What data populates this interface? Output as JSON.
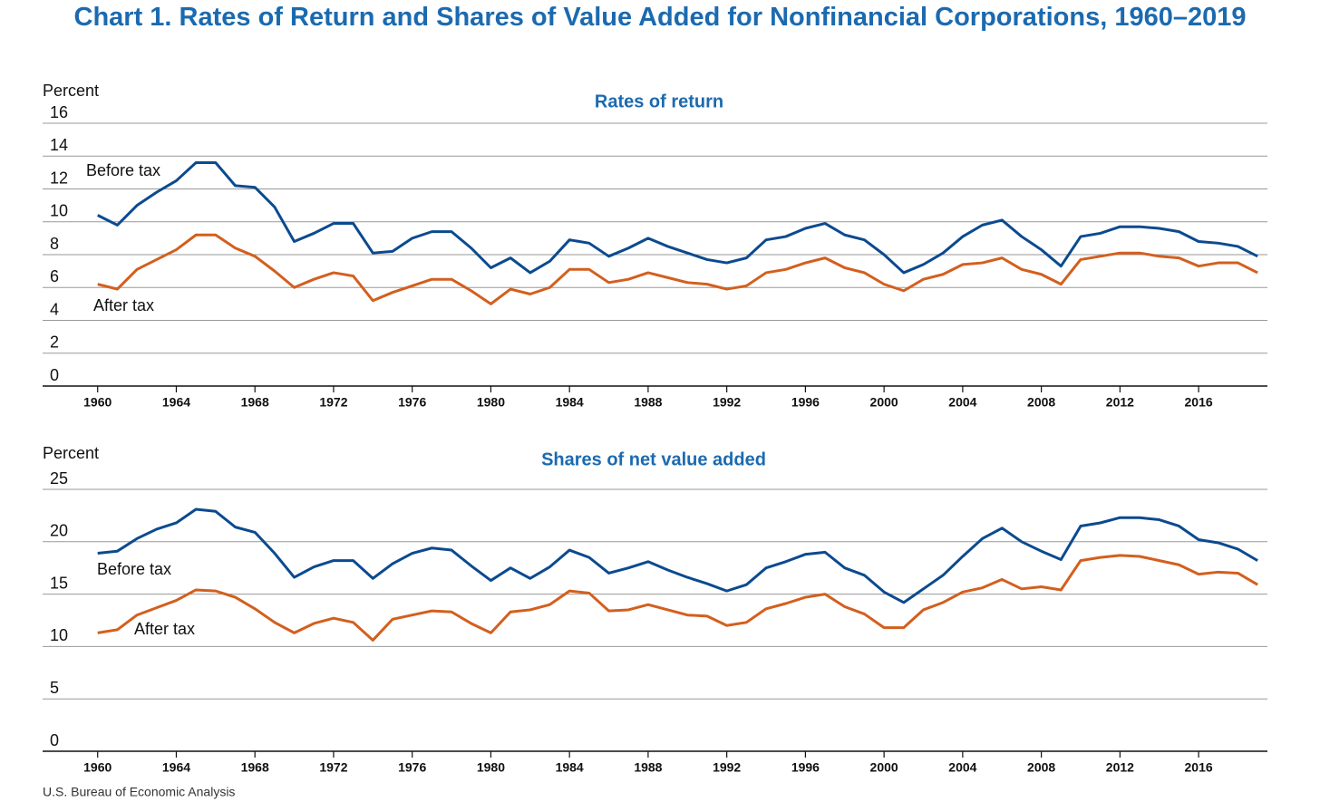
{
  "title": "Chart 1. Rates of Return and Shares of Value Added for Nonfinancial Corporations, 1960–2019",
  "source": "U.S. Bureau of Economic Analysis",
  "chart_data": [
    {
      "type": "line",
      "title": "Rates of return",
      "y_label": "Percent",
      "x": [
        1960,
        1961,
        1962,
        1963,
        1964,
        1965,
        1966,
        1967,
        1968,
        1969,
        1970,
        1971,
        1972,
        1973,
        1974,
        1975,
        1976,
        1977,
        1978,
        1979,
        1980,
        1981,
        1982,
        1983,
        1984,
        1985,
        1986,
        1987,
        1988,
        1989,
        1990,
        1991,
        1992,
        1993,
        1994,
        1995,
        1996,
        1997,
        1998,
        1999,
        2000,
        2001,
        2002,
        2003,
        2004,
        2005,
        2006,
        2007,
        2008,
        2009,
        2010,
        2011,
        2012,
        2013,
        2014,
        2015,
        2016,
        2017,
        2018,
        2019
      ],
      "xlim": [
        1957.2,
        2019.5
      ],
      "xticks": [
        1960,
        1964,
        1968,
        1972,
        1976,
        1980,
        1984,
        1988,
        1992,
        1996,
        2000,
        2004,
        2008,
        2012,
        2016
      ],
      "ylim": [
        0,
        16
      ],
      "yticks": [
        0,
        2,
        4,
        6,
        8,
        10,
        12,
        14,
        16
      ],
      "grid": true,
      "series": [
        {
          "name": "Before tax",
          "color": "#0b4a8f",
          "values": [
            10.4,
            9.8,
            11.0,
            11.8,
            12.5,
            13.6,
            13.6,
            12.2,
            12.1,
            10.9,
            8.8,
            9.3,
            9.9,
            9.9,
            8.1,
            8.2,
            9.0,
            9.4,
            9.4,
            8.4,
            7.2,
            7.8,
            6.9,
            7.6,
            8.9,
            8.7,
            7.9,
            8.4,
            9.0,
            8.5,
            8.1,
            7.7,
            7.5,
            7.8,
            8.9,
            9.1,
            9.6,
            9.9,
            9.2,
            8.9,
            8.0,
            6.9,
            7.4,
            8.1,
            9.1,
            9.8,
            10.1,
            9.1,
            8.3,
            7.3,
            9.1,
            9.3,
            9.7,
            9.7,
            9.6,
            9.4,
            8.8,
            8.7,
            8.5,
            7.9
          ]
        },
        {
          "name": "After tax",
          "color": "#d35f1e",
          "values": [
            6.2,
            5.9,
            7.1,
            7.7,
            8.3,
            9.2,
            9.2,
            8.4,
            7.9,
            7.0,
            6.0,
            6.5,
            6.9,
            6.7,
            5.2,
            5.7,
            6.1,
            6.5,
            6.5,
            5.8,
            5.0,
            5.9,
            5.6,
            6.0,
            7.1,
            7.1,
            6.3,
            6.5,
            6.9,
            6.6,
            6.3,
            6.2,
            5.9,
            6.1,
            6.9,
            7.1,
            7.5,
            7.8,
            7.2,
            6.9,
            6.2,
            5.8,
            6.5,
            6.8,
            7.4,
            7.5,
            7.8,
            7.1,
            6.8,
            6.2,
            7.7,
            7.9,
            8.1,
            8.1,
            7.9,
            7.8,
            7.3,
            7.5,
            7.5,
            6.9
          ]
        }
      ]
    },
    {
      "type": "line",
      "title": "Shares of net value added",
      "y_label": "Percent",
      "x": [
        1960,
        1961,
        1962,
        1963,
        1964,
        1965,
        1966,
        1967,
        1968,
        1969,
        1970,
        1971,
        1972,
        1973,
        1974,
        1975,
        1976,
        1977,
        1978,
        1979,
        1980,
        1981,
        1982,
        1983,
        1984,
        1985,
        1986,
        1987,
        1988,
        1989,
        1990,
        1991,
        1992,
        1993,
        1994,
        1995,
        1996,
        1997,
        1998,
        1999,
        2000,
        2001,
        2002,
        2003,
        2004,
        2005,
        2006,
        2007,
        2008,
        2009,
        2010,
        2011,
        2012,
        2013,
        2014,
        2015,
        2016,
        2017,
        2018,
        2019
      ],
      "xlim": [
        1957.2,
        2019.5
      ],
      "xticks": [
        1960,
        1964,
        1968,
        1972,
        1976,
        1980,
        1984,
        1988,
        1992,
        1996,
        2000,
        2004,
        2008,
        2012,
        2016
      ],
      "ylim": [
        0,
        25
      ],
      "yticks": [
        0,
        5,
        10,
        15,
        20,
        25
      ],
      "grid": true,
      "series": [
        {
          "name": "Before tax",
          "color": "#0b4a8f",
          "values": [
            18.9,
            19.1,
            20.3,
            21.2,
            21.8,
            23.1,
            22.9,
            21.4,
            20.9,
            18.9,
            16.6,
            17.6,
            18.2,
            18.2,
            16.5,
            17.9,
            18.9,
            19.4,
            19.2,
            17.7,
            16.3,
            17.5,
            16.5,
            17.6,
            19.2,
            18.5,
            17.0,
            17.5,
            18.1,
            17.3,
            16.6,
            16.0,
            15.3,
            15.9,
            17.5,
            18.1,
            18.8,
            19.0,
            17.5,
            16.8,
            15.2,
            14.2,
            15.5,
            16.8,
            18.6,
            20.3,
            21.3,
            20.0,
            19.1,
            18.3,
            21.5,
            21.8,
            22.3,
            22.3,
            22.1,
            21.5,
            20.2,
            19.9,
            19.3,
            18.2
          ]
        },
        {
          "name": "After tax",
          "color": "#d35f1e",
          "values": [
            11.3,
            11.6,
            13.0,
            13.7,
            14.4,
            15.4,
            15.3,
            14.7,
            13.6,
            12.3,
            11.3,
            12.2,
            12.7,
            12.3,
            10.6,
            12.6,
            13.0,
            13.4,
            13.3,
            12.2,
            11.3,
            13.3,
            13.5,
            14.0,
            15.3,
            15.1,
            13.4,
            13.5,
            14.0,
            13.5,
            13.0,
            12.9,
            12.0,
            12.3,
            13.6,
            14.1,
            14.7,
            15.0,
            13.8,
            13.1,
            11.8,
            11.8,
            13.5,
            14.2,
            15.2,
            15.6,
            16.4,
            15.5,
            15.7,
            15.4,
            18.2,
            18.5,
            18.7,
            18.6,
            18.2,
            17.8,
            16.9,
            17.1,
            17.0,
            15.9
          ]
        }
      ]
    }
  ]
}
